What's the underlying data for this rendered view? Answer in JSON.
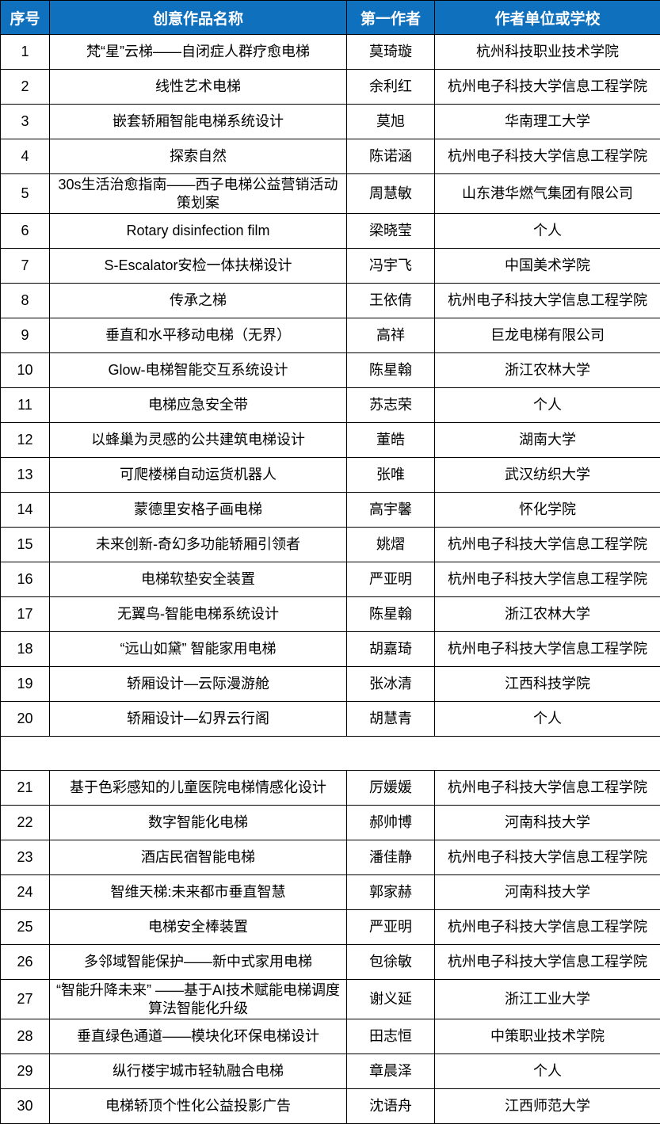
{
  "table": {
    "style": {
      "header_bg": "#0f70be",
      "header_fg": "#ffffff",
      "grid_color": "#000000"
    },
    "headers": [
      "序号",
      "创意作品名称",
      "第一作者",
      "作者单位或学校"
    ],
    "rows": [
      {
        "no": "1",
        "title": "梵“星”云梯——自闭症人群疗愈电梯",
        "author": "莫琦璇",
        "org": "杭州科技职业技术学院"
      },
      {
        "no": "2",
        "title": "线性艺术电梯",
        "author": "余利红",
        "org": "杭州电子科技大学信息工程学院"
      },
      {
        "no": "3",
        "title": "嵌套轿厢智能电梯系统设计",
        "author": "莫旭",
        "org": "华南理工大学"
      },
      {
        "no": "4",
        "title": "探索自然",
        "author": "陈诺涵",
        "org": "杭州电子科技大学信息工程学院"
      },
      {
        "no": "5",
        "title": "30s生活治愈指南——西子电梯公益营销活动策划案",
        "author": "周慧敏",
        "org": "山东港华燃气集团有限公司"
      },
      {
        "no": "6",
        "title": "Rotary disinfection film",
        "author": "梁晓莹",
        "org": "个人"
      },
      {
        "no": "7",
        "title": "S-Escalator安检一体扶梯设计",
        "author": "冯宇飞",
        "org": "中国美术学院"
      },
      {
        "no": "8",
        "title": "传承之梯",
        "author": "王依倩",
        "org": "杭州电子科技大学信息工程学院"
      },
      {
        "no": "9",
        "title": "垂直和水平移动电梯（无界）",
        "author": "高祥",
        "org": "巨龙电梯有限公司"
      },
      {
        "no": "10",
        "title": "Glow-电梯智能交互系统设计",
        "author": "陈星翰",
        "org": "浙江农林大学"
      },
      {
        "no": "11",
        "title": "电梯应急安全带",
        "author": "苏志荣",
        "org": "个人"
      },
      {
        "no": "12",
        "title": "以蜂巢为灵感的公共建筑电梯设计",
        "author": "董皓",
        "org": "湖南大学"
      },
      {
        "no": "13",
        "title": "可爬楼梯自动运货机器人",
        "author": "张唯",
        "org": "武汉纺织大学"
      },
      {
        "no": "14",
        "title": "蒙德里安格子画电梯",
        "author": "高宇馨",
        "org": "怀化学院"
      },
      {
        "no": "15",
        "title": "未来创新-奇幻多功能轿厢引领者",
        "author": "姚熠",
        "org": "杭州电子科技大学信息工程学院"
      },
      {
        "no": "16",
        "title": "电梯软垫安全装置",
        "author": "严亚明",
        "org": "杭州电子科技大学信息工程学院"
      },
      {
        "no": "17",
        "title": "无翼鸟-智能电梯系统设计",
        "author": "陈星翰",
        "org": "浙江农林大学"
      },
      {
        "no": "18",
        "title": "“远山如黛” 智能家用电梯",
        "author": "胡嘉琦",
        "org": "杭州电子科技大学信息工程学院"
      },
      {
        "no": "19",
        "title": "轿厢设计—云际漫游舱",
        "author": "张冰清",
        "org": "江西科技学院"
      },
      {
        "no": "20",
        "title": "轿厢设计—幻界云行阁",
        "author": "胡慧青",
        "org": "个人"
      },
      {
        "spacer": true
      },
      {
        "no": "21",
        "title": "基于色彩感知的儿童医院电梯情感化设计",
        "author": "厉媛媛",
        "org": "杭州电子科技大学信息工程学院"
      },
      {
        "no": "22",
        "title": "数字智能化电梯",
        "author": "郝帅博",
        "org": "河南科技大学"
      },
      {
        "no": "23",
        "title": "酒店民宿智能电梯",
        "author": "潘佳静",
        "org": "杭州电子科技大学信息工程学院"
      },
      {
        "no": "24",
        "title": "智维天梯:未来都市垂直智慧",
        "author": "郭家赫",
        "org": "河南科技大学"
      },
      {
        "no": "25",
        "title": "电梯安全棒装置",
        "author": "严亚明",
        "org": "杭州电子科技大学信息工程学院"
      },
      {
        "no": "26",
        "title": "多邻域智能保护——新中式家用电梯",
        "author": "包徐敏",
        "org": "杭州电子科技大学信息工程学院"
      },
      {
        "no": "27",
        "title": "“智能升降未来” ——基于AI技术赋能电梯调度算法智能化升级",
        "author": "谢义延",
        "org": "浙江工业大学"
      },
      {
        "no": "28",
        "title": "垂直绿色通道——模块化环保电梯设计",
        "author": "田志恒",
        "org": "中策职业技术学院"
      },
      {
        "no": "29",
        "title": "纵行楼宇城市轻轨融合电梯",
        "author": "章晨泽",
        "org": "个人"
      },
      {
        "no": "30",
        "title": "电梯轿顶个性化公益投影广告",
        "author": "沈语舟",
        "org": "江西师范大学"
      }
    ]
  }
}
